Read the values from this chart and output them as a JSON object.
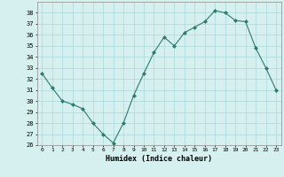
{
  "x": [
    0,
    1,
    2,
    3,
    4,
    5,
    6,
    7,
    8,
    9,
    10,
    11,
    12,
    13,
    14,
    15,
    16,
    17,
    18,
    19,
    20,
    21,
    22,
    23
  ],
  "y": [
    32.5,
    31.2,
    30.0,
    29.7,
    29.3,
    28.0,
    27.0,
    26.2,
    28.0,
    30.5,
    32.5,
    34.4,
    35.8,
    35.0,
    36.2,
    36.7,
    37.2,
    38.2,
    38.0,
    37.3,
    37.2,
    34.8,
    33.0,
    31.0
  ],
  "line_color": "#2d7a6e",
  "marker": "D",
  "marker_size": 2.0,
  "bg_color": "#d6f0f0",
  "grid_color": "#aad8d8",
  "xlabel": "Humidex (Indice chaleur)",
  "ylim": [
    26,
    39
  ],
  "yticks": [
    26,
    27,
    28,
    29,
    30,
    31,
    32,
    33,
    34,
    35,
    36,
    37,
    38
  ],
  "xlim": [
    -0.5,
    23.5
  ],
  "xticks": [
    0,
    1,
    2,
    3,
    4,
    5,
    6,
    7,
    8,
    9,
    10,
    11,
    12,
    13,
    14,
    15,
    16,
    17,
    18,
    19,
    20,
    21,
    22,
    23
  ]
}
